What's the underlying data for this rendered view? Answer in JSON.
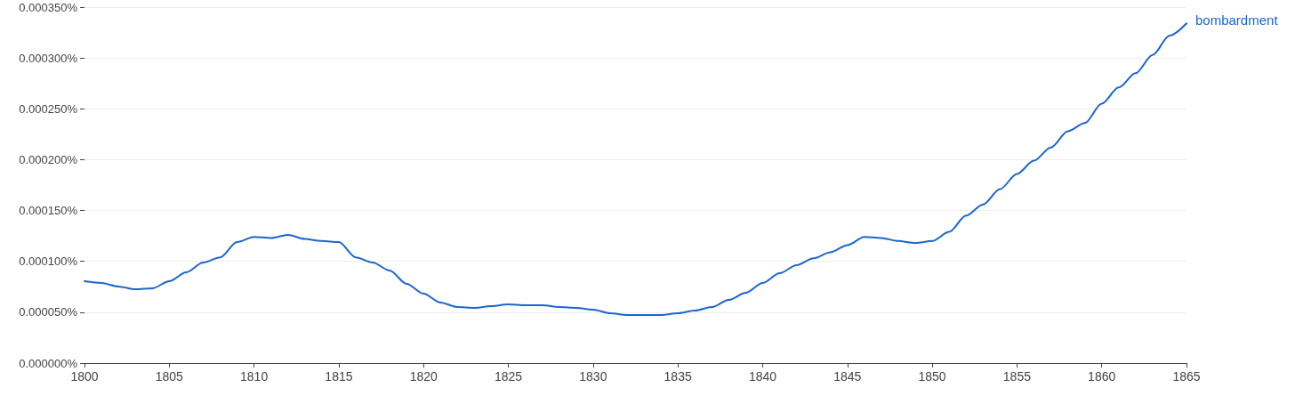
{
  "chart_data": {
    "type": "line",
    "x": [
      1800,
      1801,
      1802,
      1803,
      1804,
      1805,
      1806,
      1807,
      1808,
      1809,
      1810,
      1811,
      1812,
      1813,
      1814,
      1815,
      1816,
      1817,
      1818,
      1819,
      1820,
      1821,
      1822,
      1823,
      1824,
      1825,
      1826,
      1827,
      1828,
      1829,
      1830,
      1831,
      1832,
      1833,
      1834,
      1835,
      1836,
      1837,
      1838,
      1839,
      1840,
      1841,
      1842,
      1843,
      1844,
      1845,
      1846,
      1847,
      1848,
      1849,
      1850,
      1851,
      1852,
      1853,
      1854,
      1855,
      1856,
      1857,
      1858,
      1859,
      1860,
      1861,
      1862,
      1863,
      1864,
      1865
    ],
    "series": [
      {
        "name": "bombardment",
        "color": "#1a66cc",
        "values": [
          8.05e-05,
          7.88e-05,
          7.53e-05,
          7.26e-05,
          7.35e-05,
          8.05e-05,
          8.93e-05,
          9.89e-05,
          0.000104,
          0.000119,
          0.000124,
          0.000123,
          0.000126,
          0.000122,
          0.00012,
          0.000119,
          0.000104,
          9.89e-05,
          9.1e-05,
          7.79e-05,
          6.83e-05,
          5.95e-05,
          5.51e-05,
          5.43e-05,
          5.6e-05,
          5.78e-05,
          5.69e-05,
          5.69e-05,
          5.51e-05,
          5.43e-05,
          5.25e-05,
          4.9e-05,
          4.73e-05,
          4.73e-05,
          4.73e-05,
          4.9e-05,
          5.16e-05,
          5.51e-05,
          6.21e-05,
          6.91e-05,
          7.88e-05,
          8.84e-05,
          9.63e-05,
          0.000103,
          0.000109,
          0.000116,
          0.000124,
          0.000123,
          0.00012,
          0.000118,
          0.00012,
          0.000129,
          0.000145,
          0.000156,
          0.000171,
          0.000186,
          0.000199,
          0.000212,
          0.000228,
          0.000236,
          0.000255,
          0.000271,
          0.000285,
          0.000303,
          0.000322,
          0.000334
        ]
      }
    ],
    "xlim": [
      1800,
      1865
    ],
    "xticks": [
      1800,
      1805,
      1810,
      1815,
      1820,
      1825,
      1830,
      1835,
      1840,
      1845,
      1850,
      1855,
      1860,
      1865
    ],
    "ylim": [
      0,
      0.00035
    ],
    "yticks": [
      {
        "value": 0,
        "label": "0.000000%"
      },
      {
        "value": 5e-05,
        "label": "0.000050%"
      },
      {
        "value": 0.0001,
        "label": "0.000100%"
      },
      {
        "value": 0.00015,
        "label": "0.000150%"
      },
      {
        "value": 0.0002,
        "label": "0.000200%"
      },
      {
        "value": 0.00025,
        "label": "0.000250%"
      },
      {
        "value": 0.0003,
        "label": "0.000300%"
      },
      {
        "value": 0.00035,
        "label": "0.000350%"
      }
    ],
    "grid": "y",
    "legend": false,
    "marker": "none",
    "line_style": "solid"
  }
}
